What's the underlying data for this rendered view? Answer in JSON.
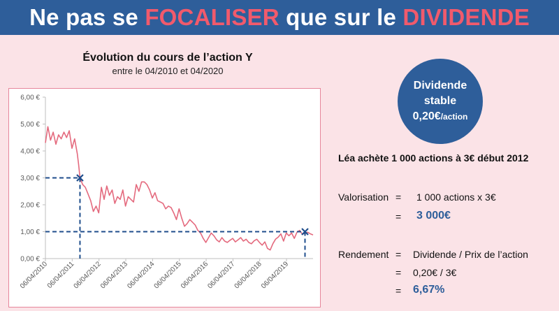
{
  "banner": {
    "part1": "Ne pas se ",
    "part2": "FOCALISER",
    "part3": " que sur le ",
    "part4": "DIVIDENDE",
    "accent_color": "#f15a6c",
    "background_color": "#2e5e9a"
  },
  "chart_title": "Évolution du cours de l’action Y",
  "chart_subtitle": "entre le 04/2010 et 04/2020",
  "circle": {
    "line1": "Dividende",
    "line2": "stable",
    "line3_value": "0,20€",
    "line3_unit": "/action"
  },
  "scenario": "Léa achète 1 000 actions à 3€ début 2012",
  "valorisation": {
    "label": "Valorisation",
    "eq1": "=",
    "formula": "1 000 actions x 3€",
    "eq2": "=",
    "result": "3 000€"
  },
  "rendement": {
    "label": "Rendement",
    "eq1": "=",
    "formula": "Dividende / Prix de l’action",
    "eq2": "=",
    "calc": "0,20€ / 3€",
    "eq3": "=",
    "result": "6,67%"
  },
  "chart_data": {
    "type": "line",
    "y_ticks": [
      "0,00 €",
      "1,00 €",
      "2,00 €",
      "3,00 €",
      "4,00 €",
      "5,00 €",
      "6,00 €"
    ],
    "ylim": [
      0,
      6
    ],
    "x_ticks": [
      "06/04/2010",
      "06/04/2011",
      "06/04/2012",
      "06/04/2013",
      "06/04/2014",
      "06/04/2015",
      "06/04/2016",
      "06/04/2017",
      "06/04/2018",
      "06/04/2019"
    ],
    "xlim": [
      2010.26,
      2020.25
    ],
    "line_color": "#e46a7e",
    "guide_color": "#1f4e8c",
    "series": [
      {
        "x": [
          2010.26,
          2010.35,
          2010.45,
          2010.55,
          2010.65,
          2010.75,
          2010.85,
          2010.95,
          2011.05,
          2011.15,
          2011.25,
          2011.35,
          2011.45,
          2011.5,
          2011.55,
          2011.65,
          2011.75,
          2011.85,
          2011.95,
          2012.05,
          2012.15,
          2012.25,
          2012.35,
          2012.45,
          2012.55,
          2012.65,
          2012.75,
          2012.85,
          2012.95,
          2013.05,
          2013.15,
          2013.25,
          2013.35,
          2013.45,
          2013.55,
          2013.65,
          2013.75,
          2013.85,
          2013.95,
          2014.05,
          2014.15,
          2014.25,
          2014.35,
          2014.45,
          2014.55,
          2014.65,
          2014.75,
          2014.85,
          2014.95,
          2015.05,
          2015.15,
          2015.25,
          2015.35,
          2015.45,
          2015.55,
          2015.65,
          2015.75,
          2015.85,
          2015.95,
          2016.05,
          2016.15,
          2016.25,
          2016.35,
          2016.45,
          2016.55,
          2016.65,
          2016.75,
          2016.85,
          2016.95,
          2017.05,
          2017.15,
          2017.25,
          2017.35,
          2017.45,
          2017.55,
          2017.65,
          2017.75,
          2017.85,
          2017.95,
          2018.05,
          2018.15,
          2018.25,
          2018.35,
          2018.45,
          2018.55,
          2018.65,
          2018.75,
          2018.85,
          2018.95,
          2019.05,
          2019.15,
          2019.25,
          2019.35,
          2019.45,
          2019.55,
          2019.65,
          2019.75,
          2019.85,
          2019.95,
          2020.05,
          2020.15,
          2020.25
        ],
        "values": [
          4.3,
          4.9,
          4.4,
          4.7,
          4.25,
          4.6,
          4.45,
          4.7,
          4.5,
          4.75,
          4.1,
          4.45,
          3.9,
          3.5,
          3.0,
          2.75,
          2.65,
          2.4,
          2.15,
          1.75,
          1.95,
          1.7,
          2.65,
          2.2,
          2.7,
          2.35,
          2.55,
          2.05,
          2.3,
          2.2,
          2.55,
          1.95,
          2.3,
          2.2,
          2.1,
          2.75,
          2.5,
          2.85,
          2.85,
          2.75,
          2.55,
          2.25,
          2.45,
          2.15,
          2.1,
          2.05,
          1.85,
          1.95,
          1.9,
          1.7,
          1.45,
          1.85,
          1.5,
          1.2,
          1.3,
          1.45,
          1.35,
          1.25,
          1.05,
          0.95,
          0.75,
          0.6,
          0.78,
          0.95,
          0.85,
          0.7,
          0.62,
          0.78,
          0.65,
          0.6,
          0.68,
          0.75,
          0.62,
          0.7,
          0.78,
          0.65,
          0.72,
          0.6,
          0.55,
          0.66,
          0.72,
          0.6,
          0.5,
          0.62,
          0.38,
          0.32,
          0.55,
          0.72,
          0.8,
          0.92,
          0.65,
          0.95,
          0.85,
          0.95,
          0.75,
          0.98,
          1.05,
          0.9,
          0.95,
          0.98,
          0.92,
          0.88
        ]
      }
    ],
    "markers": [
      {
        "x": 2011.55,
        "y": 3.0
      },
      {
        "x": 2019.95,
        "y": 1.0
      }
    ]
  }
}
